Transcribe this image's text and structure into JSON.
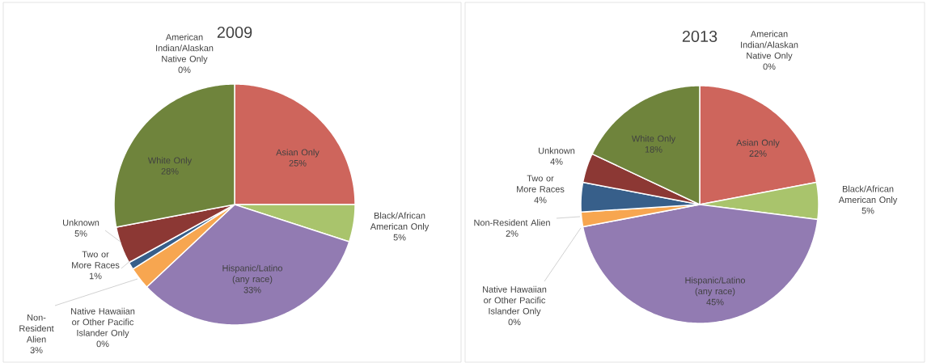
{
  "chart_data": [
    {
      "type": "pie",
      "title": "2009",
      "categories": [
        "American Indian/Alaskan Native Only",
        "Asian Only",
        "Black/African American Only",
        "Hispanic/Latino (any race)",
        "Native Hawaiian or Other Pacific Islander Only",
        "Non-Resident Alien",
        "Two or More Races",
        "Unknown",
        "White Only"
      ],
      "values": [
        0,
        25,
        5,
        33,
        0,
        3,
        1,
        5,
        28
      ],
      "value_labels": [
        "0%",
        "25%",
        "5%",
        "33%",
        "0%",
        "3%",
        "1%",
        "5%",
        "28%"
      ],
      "colors": [
        "#4f81bd",
        "#ce655c",
        "#a9c46c",
        "#927bb2",
        "#4bacc6",
        "#f7a650",
        "#375f8a",
        "#8c3834",
        "#6f843c"
      ]
    },
    {
      "type": "pie",
      "title": "2013",
      "categories": [
        "American Indian/Alaskan Native Only",
        "Asian Only",
        "Black/African American Only",
        "Hispanic/Latino (any race)",
        "Native Hawaiian or Other Pacific Islander Only",
        "Non-Resident Alien",
        "Two or More Races",
        "Unknown",
        "White Only"
      ],
      "values": [
        0,
        22,
        5,
        45,
        0,
        2,
        4,
        4,
        18
      ],
      "value_labels": [
        "0%",
        "22%",
        "5%",
        "45%",
        "0%",
        "2%",
        "4%",
        "4%",
        "18%"
      ],
      "colors": [
        "#4f81bd",
        "#ce655c",
        "#a9c46c",
        "#927bb2",
        "#4bacc6",
        "#f7a650",
        "#375f8a",
        "#8c3834",
        "#6f843c"
      ]
    }
  ]
}
